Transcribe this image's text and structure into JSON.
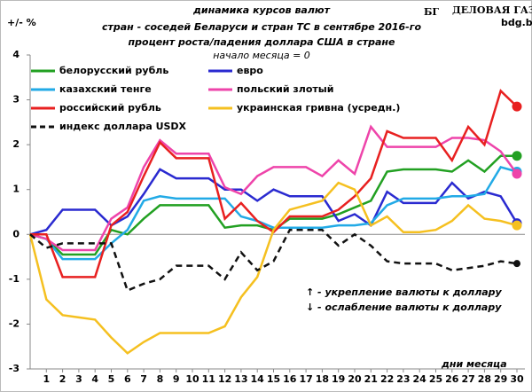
{
  "chart_data": {
    "type": "line",
    "title": "динамика  курсов валют",
    "subtitle": "стран - соседей Беларуси и стран ТС в сентябре 2016-го",
    "note": "процент роста/падения доллара США в стране",
    "note2": "начало месяца = 0",
    "y_label": "+/- %",
    "x_label": "дни месяца",
    "annotations": [
      "↑ - укрепление валюты к доллару",
      "↓ - ослабление валюты к доллару"
    ],
    "logo": {
      "mark": "БГ",
      "name": "ДЕЛОВАЯ ГАЗЕТА",
      "site": "bdg.by"
    },
    "x": [
      0,
      1,
      2,
      3,
      4,
      5,
      6,
      7,
      8,
      9,
      10,
      11,
      12,
      13,
      14,
      15,
      16,
      17,
      18,
      19,
      20,
      21,
      22,
      23,
      24,
      25,
      26,
      27,
      28,
      29,
      30
    ],
    "xlim": [
      0,
      30
    ],
    "xticks": [
      1,
      2,
      3,
      4,
      5,
      6,
      7,
      8,
      9,
      10,
      11,
      12,
      13,
      14,
      15,
      16,
      17,
      18,
      19,
      20,
      21,
      22,
      23,
      24,
      25,
      26,
      27,
      28,
      29,
      30
    ],
    "ylim": [
      -3,
      4
    ],
    "yticks": [
      4,
      3,
      2,
      1,
      0,
      -1,
      -2,
      -3
    ],
    "series": [
      {
        "name": "белорусский рубль",
        "color": "#22a022",
        "style": "solid",
        "values": [
          0,
          -0.1,
          -0.45,
          -0.45,
          -0.45,
          0.1,
          0,
          0.35,
          0.65,
          0.65,
          0.65,
          0.65,
          0.15,
          0.2,
          0.2,
          0.1,
          0.35,
          0.35,
          0.35,
          0.45,
          0.6,
          0.75,
          1.4,
          1.45,
          1.45,
          1.45,
          1.4,
          1.65,
          1.4,
          1.75,
          1.75
        ]
      },
      {
        "name": "евро",
        "color": "#2a2ad0",
        "style": "solid",
        "values": [
          0,
          0.1,
          0.55,
          0.55,
          0.55,
          0.2,
          0.4,
          0.9,
          1.45,
          1.25,
          1.25,
          1.25,
          1.0,
          1.0,
          0.75,
          1.0,
          0.85,
          0.85,
          0.85,
          0.3,
          0.45,
          0.2,
          0.95,
          0.7,
          0.7,
          0.7,
          1.15,
          0.8,
          0.95,
          0.85,
          0.25
        ]
      },
      {
        "name": "казахский  тенге",
        "color": "#22aae6",
        "style": "solid",
        "values": [
          0,
          -0.1,
          -0.55,
          -0.55,
          -0.55,
          -0.2,
          0.1,
          0.75,
          0.85,
          0.8,
          0.8,
          0.8,
          0.8,
          0.4,
          0.3,
          0.15,
          0.15,
          0.15,
          0.15,
          0.2,
          0.2,
          0.25,
          0.65,
          0.8,
          0.8,
          0.8,
          0.85,
          0.85,
          0.9,
          1.5,
          1.4
        ]
      },
      {
        "name": "польский злотый",
        "color": "#ee44aa",
        "style": "solid",
        "values": [
          0,
          -0.1,
          -0.35,
          -0.35,
          -0.35,
          0.35,
          0.6,
          1.5,
          2.1,
          1.8,
          1.8,
          1.8,
          1.05,
          0.9,
          1.3,
          1.5,
          1.5,
          1.5,
          1.3,
          1.65,
          1.35,
          2.4,
          1.95,
          1.95,
          1.95,
          1.95,
          2.15,
          2.15,
          2.1,
          1.85,
          1.35
        ]
      },
      {
        "name": "российский рубль",
        "color": "#e82020",
        "style": "solid",
        "values": [
          0,
          0,
          -0.95,
          -0.95,
          -0.95,
          0.2,
          0.5,
          1.3,
          2.05,
          1.7,
          1.7,
          1.7,
          0.35,
          0.7,
          0.3,
          0.05,
          0.4,
          0.4,
          0.4,
          0.55,
          0.85,
          1.25,
          2.3,
          2.15,
          2.15,
          2.15,
          1.65,
          2.4,
          2.0,
          3.2,
          2.85
        ]
      },
      {
        "name": "украинская гривна (усредн.)",
        "color": "#f5c020",
        "style": "solid",
        "values": [
          0,
          -1.45,
          -1.8,
          -1.85,
          -1.9,
          -2.3,
          -2.65,
          -2.4,
          -2.2,
          -2.2,
          -2.2,
          -2.2,
          -2.05,
          -1.4,
          -0.95,
          0.1,
          0.55,
          0.65,
          0.75,
          1.15,
          1.0,
          0.2,
          0.4,
          0.05,
          0.05,
          0.1,
          0.3,
          0.65,
          0.35,
          0.3,
          0.2
        ]
      },
      {
        "name": "индекс доллара USDX",
        "color": "#111111",
        "style": "dashed",
        "values": [
          0,
          -0.3,
          -0.2,
          -0.2,
          -0.2,
          -0.2,
          -1.25,
          -1.1,
          -1.0,
          -0.7,
          -0.7,
          -0.7,
          -1.0,
          -0.4,
          -0.8,
          -0.6,
          0.1,
          0.1,
          0.1,
          -0.25,
          0,
          -0.25,
          -0.6,
          -0.65,
          -0.65,
          -0.65,
          -0.8,
          -0.75,
          -0.7,
          -0.6,
          -0.65
        ]
      }
    ]
  }
}
